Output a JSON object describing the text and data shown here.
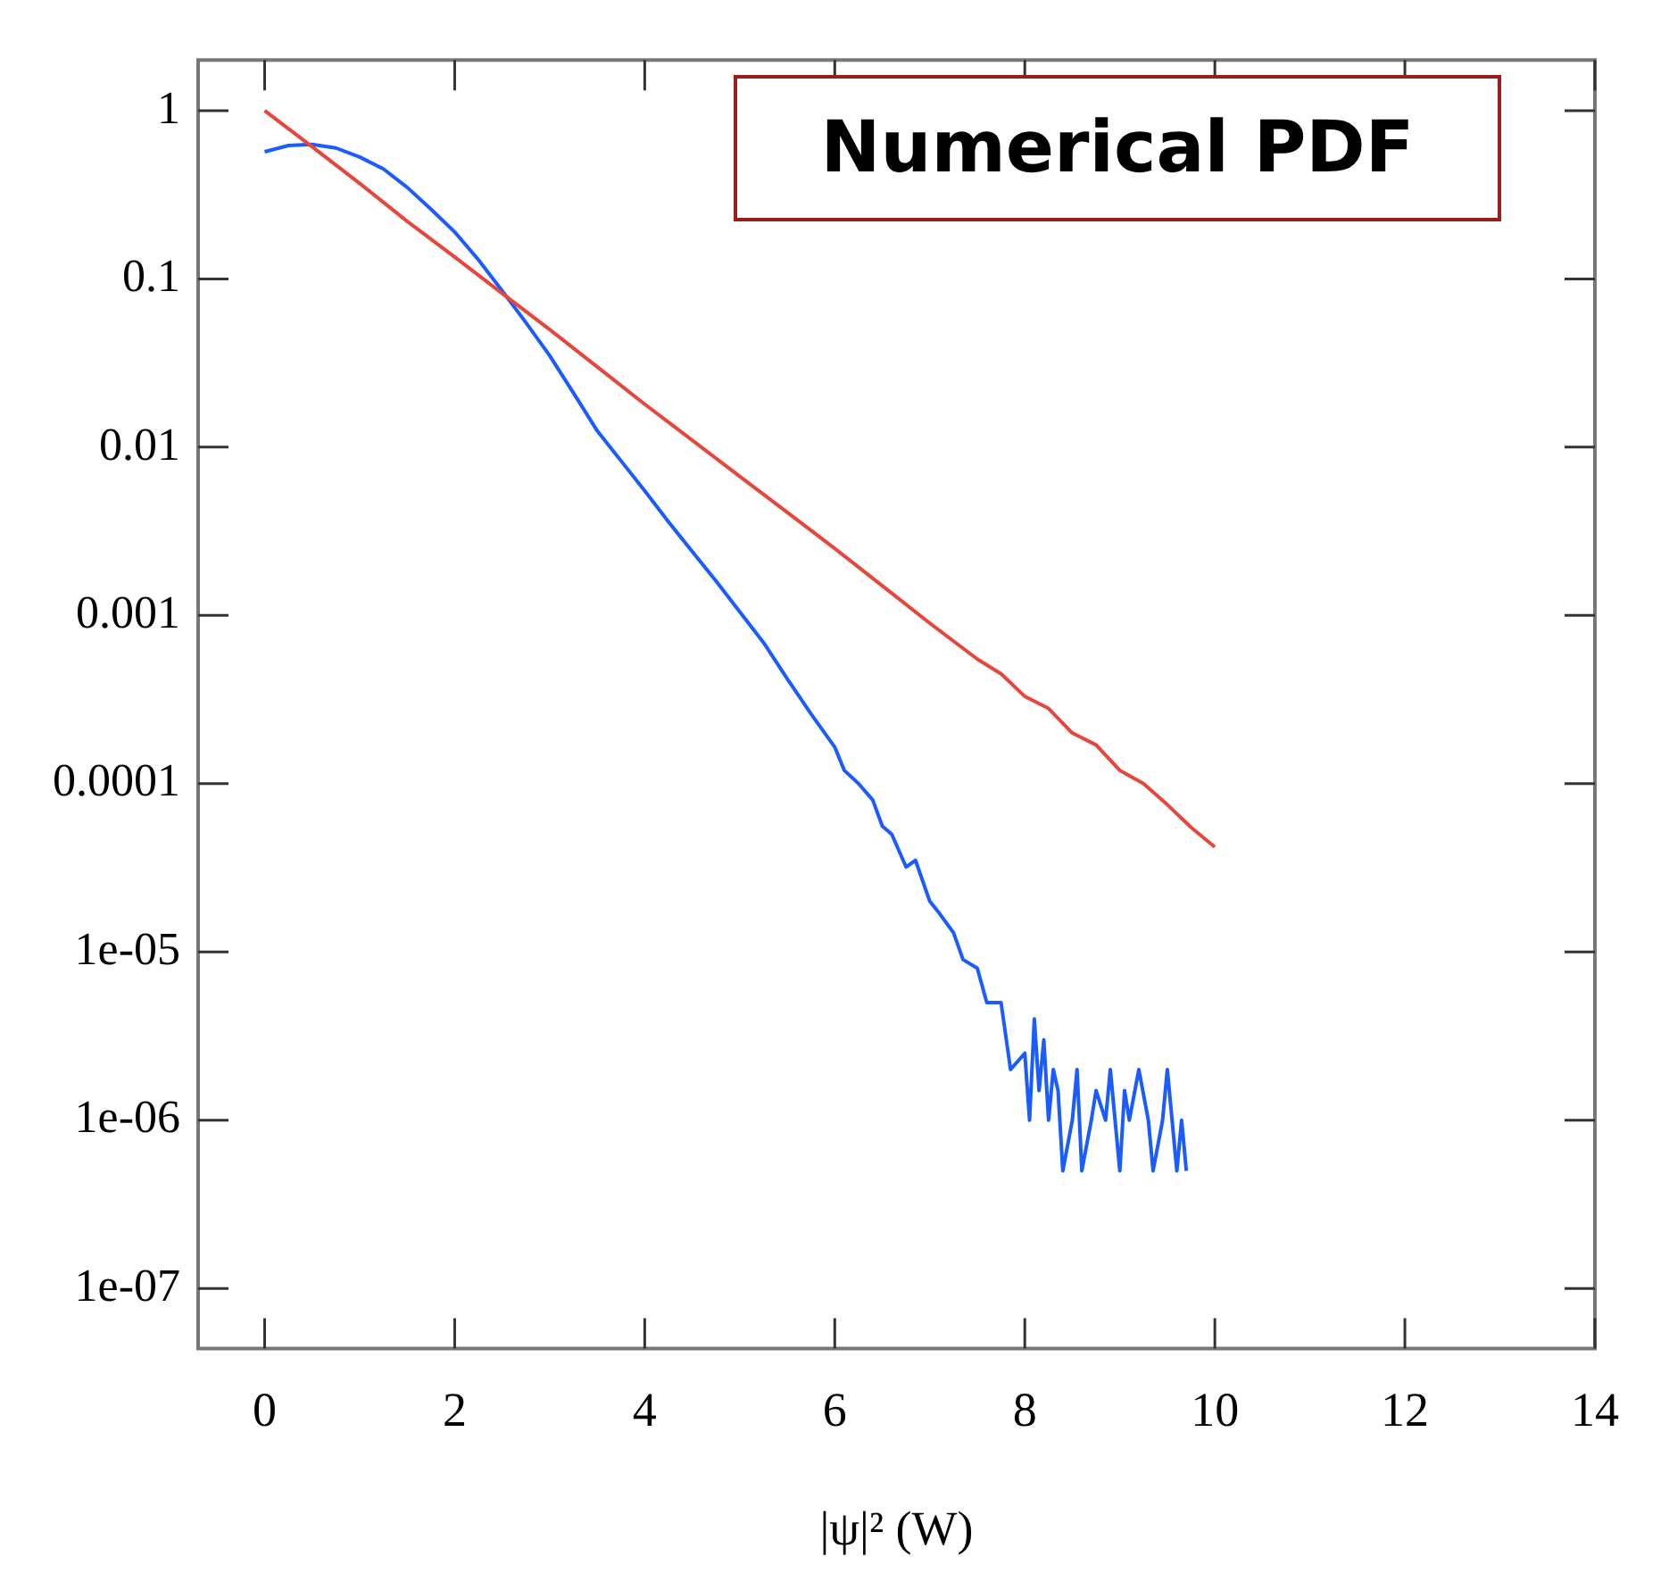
{
  "chart_data": {
    "type": "line",
    "xlabel": "|ψ|² (W)",
    "annotations": [
      "Numerical PDF"
    ],
    "log": "y",
    "xlim": [
      -0.7,
      14
    ],
    "xticks": [
      0,
      2,
      4,
      6,
      8,
      10,
      12,
      14
    ],
    "ylim": [
      4.4e-08,
      2
    ],
    "yticks": [
      1,
      0.1,
      0.01,
      0.001,
      0.0001,
      {
        "value": 1e-05,
        "label": "1e-05"
      },
      {
        "value": 1e-06,
        "label": "1e-06"
      },
      {
        "value": 1e-07,
        "label": "1e-07"
      }
    ],
    "line_style": "solid",
    "series": [
      {
        "color": "#e8453c",
        "x": [
          0,
          0.5,
          1,
          1.5,
          2,
          2.5,
          3,
          3.5,
          4,
          4.5,
          5,
          5.5,
          6,
          6.5,
          7,
          7.5,
          7.75,
          8,
          8.25,
          8.5,
          8.75,
          9,
          9.25,
          9.5,
          9.75,
          10
        ],
        "values": [
          1,
          0.61,
          0.37,
          0.22,
          0.135,
          0.082,
          0.05,
          0.03,
          0.018,
          0.011,
          0.0067,
          0.0041,
          0.0025,
          0.0015,
          0.0009,
          0.00055,
          0.00045,
          0.00033,
          0.00028,
          0.0002,
          0.00017,
          0.00012,
          0.0001,
          7.5e-05,
          5.5e-05,
          4.2e-05
        ]
      },
      {
        "color": "#1a5cff",
        "x": [
          0,
          0.25,
          0.5,
          0.75,
          1,
          1.25,
          1.5,
          1.75,
          2,
          2.25,
          2.5,
          2.75,
          3,
          3.25,
          3.5,
          3.75,
          4,
          4.25,
          4.5,
          4.75,
          5,
          5.25,
          5.5,
          5.75,
          6,
          6.1,
          6.25,
          6.4,
          6.5,
          6.6,
          6.75,
          6.85,
          7,
          7.1,
          7.25,
          7.35,
          7.5,
          7.6,
          7.75,
          7.85,
          8,
          8.05,
          8.1,
          8.15,
          8.2,
          8.25,
          8.3,
          8.35,
          8.4,
          8.5,
          8.55,
          8.6,
          8.7,
          8.75,
          8.85,
          8.9,
          9,
          9.05,
          9.1,
          9.2,
          9.3,
          9.35,
          9.45,
          9.5,
          9.6,
          9.65,
          9.7
        ],
        "values": [
          0.57,
          0.62,
          0.63,
          0.6,
          0.53,
          0.45,
          0.35,
          0.26,
          0.19,
          0.13,
          0.085,
          0.055,
          0.035,
          0.021,
          0.0125,
          0.0083,
          0.0055,
          0.0036,
          0.0024,
          0.0016,
          0.00105,
          0.00069,
          0.00042,
          0.00026,
          0.000165,
          0.00012,
          0.0001,
          8e-05,
          5.6e-05,
          5e-05,
          3.2e-05,
          3.5e-05,
          2e-05,
          1.7e-05,
          1.3e-05,
          9e-06,
          8e-06,
          5e-06,
          5e-06,
          2e-06,
          2.5e-06,
          1e-06,
          4e-06,
          1.5e-06,
          3e-06,
          1e-06,
          2e-06,
          1.5e-06,
          5e-07,
          1e-06,
          2e-06,
          5e-07,
          1e-06,
          1.5e-06,
          1e-06,
          2e-06,
          5e-07,
          1.5e-06,
          1e-06,
          2e-06,
          1e-06,
          5e-07,
          1e-06,
          2e-06,
          5e-07,
          1e-06,
          5e-07
        ]
      }
    ]
  }
}
